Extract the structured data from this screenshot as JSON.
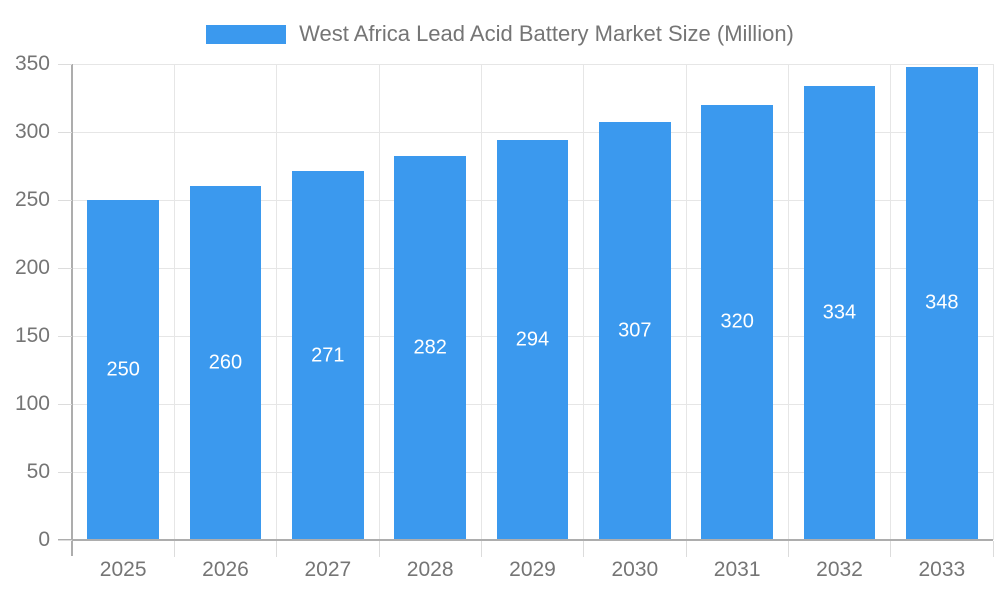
{
  "legend": {
    "label": "West Africa Lead Acid Battery Market Size (Million)"
  },
  "chart_data": {
    "type": "bar",
    "title": "West Africa Lead Acid Battery Market Size (Million)",
    "categories": [
      "2025",
      "2026",
      "2027",
      "2028",
      "2029",
      "2030",
      "2031",
      "2032",
      "2033"
    ],
    "values": [
      250,
      260,
      271,
      282,
      294,
      307,
      320,
      334,
      348
    ],
    "xlabel": "",
    "ylabel": "",
    "ylim": [
      0,
      350
    ],
    "ytick_step": 50,
    "yticks": [
      0,
      50,
      100,
      150,
      200,
      250,
      300,
      350
    ],
    "grid": true,
    "legend_position": "top-center",
    "bar_width_fraction": 0.7,
    "value_labels": "centered-inside-white",
    "colors": {
      "bar": "#3B99EE",
      "gridline": "#E6E6E6",
      "axis_line": "#ADADAD",
      "tick": "#DCDCDC",
      "axis_text": "#757575",
      "value_label_text": "#FFFFFF",
      "background": "#FFFFFF"
    }
  }
}
